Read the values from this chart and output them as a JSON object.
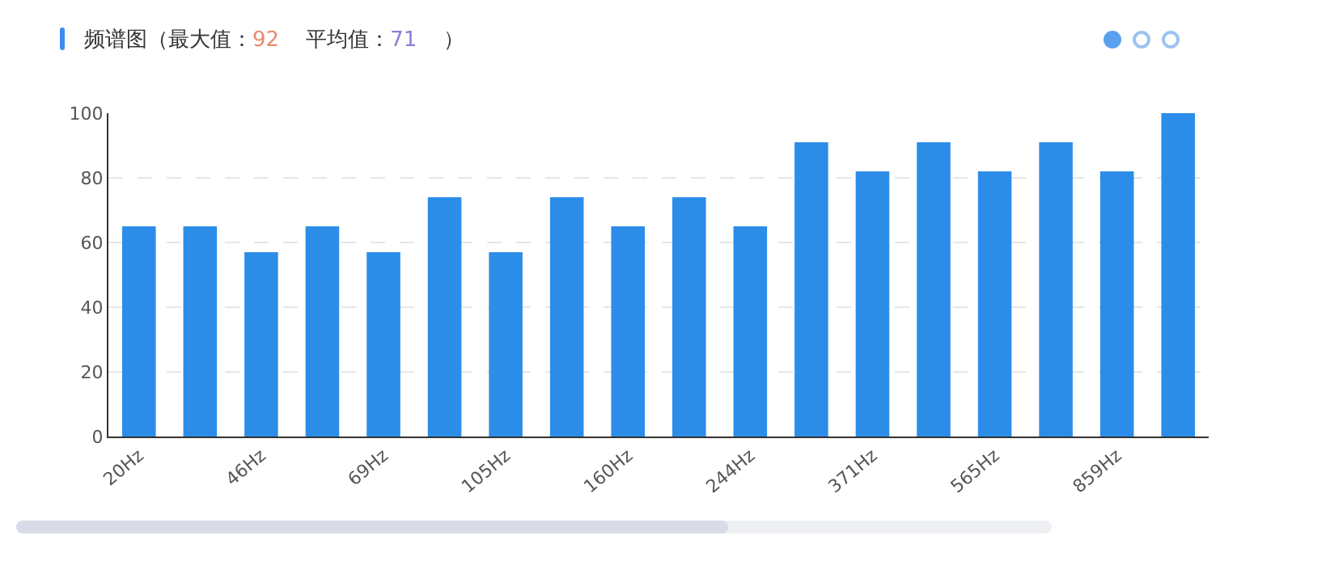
{
  "chart_data": {
    "type": "bar",
    "title": "频谱图（最大值：92    平均值：71    ）",
    "categories": [
      "20Hz",
      null,
      "46Hz",
      null,
      "69Hz",
      null,
      "105Hz",
      null,
      "160Hz",
      null,
      "244Hz",
      null,
      "371Hz",
      null,
      "565Hz",
      null,
      "859Hz",
      null
    ],
    "values": [
      65,
      65,
      57,
      65,
      57,
      74,
      57,
      74,
      65,
      74,
      65,
      91,
      82,
      91,
      82,
      91,
      82,
      100
    ],
    "color": "#2b8de8",
    "ylim": [
      0,
      100
    ],
    "yticks": [
      0,
      20,
      40,
      60,
      80,
      100
    ],
    "grid": "y"
  }
}
